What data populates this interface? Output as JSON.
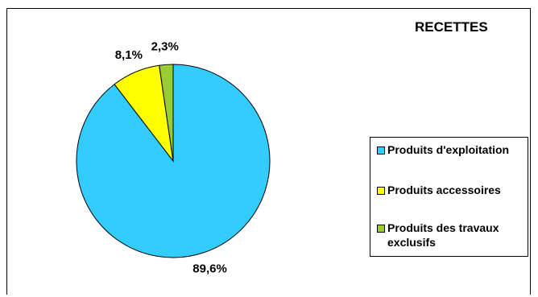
{
  "chart_data": {
    "type": "pie",
    "title": "RECETTES",
    "categories": [
      "Produits d'exploitation",
      "Produits accessoires",
      "Produits des travaux exclusifs"
    ],
    "values": [
      89.6,
      8.1,
      2.3
    ],
    "value_labels": [
      "89,6%",
      "8,1%",
      "2,3%"
    ],
    "colors": [
      "#33CCFF",
      "#FFFF00",
      "#99CC33"
    ],
    "legend_position": "right"
  }
}
